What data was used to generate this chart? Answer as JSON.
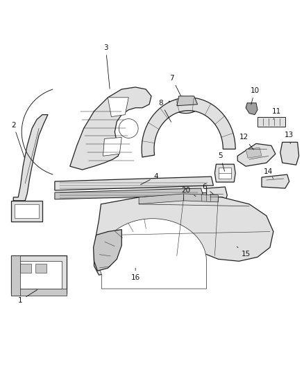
{
  "background_color": "#ffffff",
  "figure_width": 4.38,
  "figure_height": 5.33,
  "dpi": 100,
  "line_color": "#000000",
  "label_fontsize": 7.5,
  "ec": "#222222",
  "fc_light": "#e0e0e0",
  "fc_mid": "#c8c8c8",
  "fc_dark": "#a0a0a0"
}
